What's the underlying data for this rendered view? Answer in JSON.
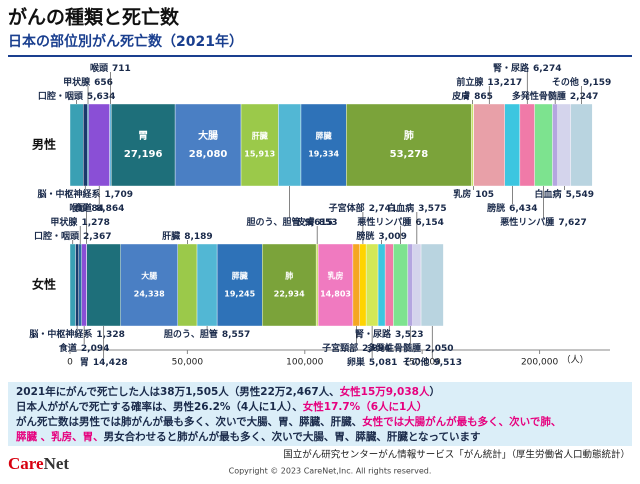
{
  "header": {
    "title": "がんの種類と死亡数",
    "subtitle": "日本の部位別がん死亡数（2021年）"
  },
  "chart_data": {
    "type": "bar",
    "orientation": "horizontal",
    "stacked": true,
    "categories": [
      "男性",
      "女性"
    ],
    "xlim": [
      0,
      230000
    ],
    "xticks": [
      0,
      {
        "value": 50000,
        "label": "50,000"
      },
      {
        "value": 100000,
        "label": "100,000"
      },
      {
        "value": 150000,
        "label": "150,000"
      },
      {
        "value": 200000,
        "label": "200,000"
      }
    ],
    "xlabel": "（人）",
    "series": [
      {
        "name": "口腔・咽頭",
        "color": "#3aa0b4",
        "values": [
          5634,
          2367
        ],
        "value_labels": [
          "5,634",
          "2,367"
        ]
      },
      {
        "name": "脳・中枢神経系",
        "color": "#1a3a6b",
        "values": [
          1709,
          1328
        ],
        "value_labels": [
          "1,709",
          "1,328"
        ]
      },
      {
        "name": "甲状腺",
        "color": "#2e6da4",
        "values": [
          656,
          1278
        ],
        "value_labels": [
          "656",
          "1,278"
        ]
      },
      {
        "name": "食道",
        "color": "#8a4fd6",
        "values": [
          8864,
          2094
        ],
        "value_labels": [
          "8,864",
          "2,094"
        ]
      },
      {
        "name": "喉頭",
        "color": "#6ab7e0",
        "values": [
          711,
          84
        ],
        "value_labels": [
          "711",
          "84"
        ]
      },
      {
        "name": "胃",
        "color": "#1e6f7a",
        "values": [
          27196,
          14428
        ],
        "value_labels": [
          "27,196",
          "14,428"
        ]
      },
      {
        "name": "大腸",
        "color": "#4a7fc4",
        "values": [
          28080,
          24338
        ],
        "value_labels": [
          "28,080",
          "24,338"
        ]
      },
      {
        "name": "肝臓",
        "color": "#9bc94a",
        "values": [
          15913,
          8189
        ],
        "value_labels": [
          "15,913",
          "8,189"
        ]
      },
      {
        "name": "胆のう、胆管",
        "color": "#52b7d4",
        "values": [
          9615,
          8557
        ],
        "value_labels": [
          "9,615",
          "8,557"
        ]
      },
      {
        "name": "膵臓",
        "color": "#2e72b8",
        "values": [
          19334,
          19245
        ],
        "value_labels": [
          "19,334",
          "19,245"
        ]
      },
      {
        "name": "肺",
        "color": "#7ba33a",
        "values": [
          53278,
          22934
        ],
        "value_labels": [
          "53,278",
          "22,934"
        ]
      },
      {
        "name": "皮膚",
        "color": "#c9e36b",
        "values": [
          865,
          853
        ],
        "value_labels": [
          "865",
          "853"
        ]
      },
      {
        "name": "乳房",
        "color": "#f07ac0",
        "values": [
          105,
          14803
        ],
        "value_labels": [
          "105",
          "14,803"
        ]
      },
      {
        "name": "子宮頸部",
        "color": "#f5a623",
        "values": [
          null,
          2894
        ],
        "value_labels": [
          null,
          "2,894"
        ]
      },
      {
        "name": "子宮体部",
        "color": "#ffd400",
        "values": [
          null,
          2741
        ],
        "value_labels": [
          null,
          "2,741"
        ]
      },
      {
        "name": "卵巣",
        "color": "#d4e857",
        "values": [
          null,
          5081
        ],
        "value_labels": [
          null,
          "5,081"
        ]
      },
      {
        "name": "前立腺",
        "color": "#e8a0a8",
        "values": [
          13217,
          null
        ],
        "value_labels": [
          "13,217",
          null
        ]
      },
      {
        "name": "膀胱",
        "color": "#3cc6e0",
        "values": [
          6434,
          3009
        ],
        "value_labels": [
          "6,434",
          "3,009"
        ]
      },
      {
        "name": "腎・尿路",
        "color": "#f07aa8",
        "values": [
          6274,
          3523
        ],
        "value_labels": [
          "6,274",
          "3,523"
        ]
      },
      {
        "name": "悪性リンパ腫",
        "color": "#7de38f",
        "values": [
          7627,
          6154
        ],
        "value_labels": [
          "7,627",
          "6,154"
        ]
      },
      {
        "name": "多発性骨髄腫",
        "color": "#b4a6e0",
        "values": [
          2247,
          2050
        ],
        "value_labels": [
          "2,247",
          "2,050"
        ]
      },
      {
        "name": "白血病",
        "color": "#d4d4ec",
        "values": [
          5549,
          3575
        ],
        "value_labels": [
          "5,549",
          "3,575"
        ]
      },
      {
        "name": "その他",
        "color": "#b9d4e0",
        "values": [
          9159,
          9513
        ],
        "value_labels": [
          "9,159",
          "9,513"
        ]
      }
    ]
  },
  "notes": [
    [
      {
        "text": "2021年にがんで死亡した人は38万1,505人（男性22万2,467人、"
      },
      {
        "text": "女性15万9,038人",
        "color": "#e6007e"
      },
      {
        "text": "）"
      }
    ],
    [
      {
        "text": "日本人ががんで死亡する確率は、男性26.2%（4人に1人）、"
      },
      {
        "text": "女性17.7%（6人に1人）",
        "color": "#e6007e"
      }
    ],
    [
      {
        "text": "がん死亡数は男性では肺がんが最も多く、次いで大腸、胃、膵臓、肝臓、"
      },
      {
        "text": "女性では大腸がんが最も多く、次いで肺、",
        "color": "#e6007e"
      }
    ],
    [
      {
        "text": "膵臓 、乳房、胃、",
        "color": "#e6007e"
      },
      {
        "text": "男女合わせると肺がんが最も多く、次いで大腸、胃、膵臓、肝臓となっています"
      }
    ]
  ],
  "footer": {
    "logo_a": "Care",
    "logo_b": "Net",
    "source": "国立がん研究センターがん情報サービス「がん統計」（厚生労働省人口動態統計）",
    "copyright": "Copyright © 2023 CareNet,Inc. All rights reserved."
  }
}
